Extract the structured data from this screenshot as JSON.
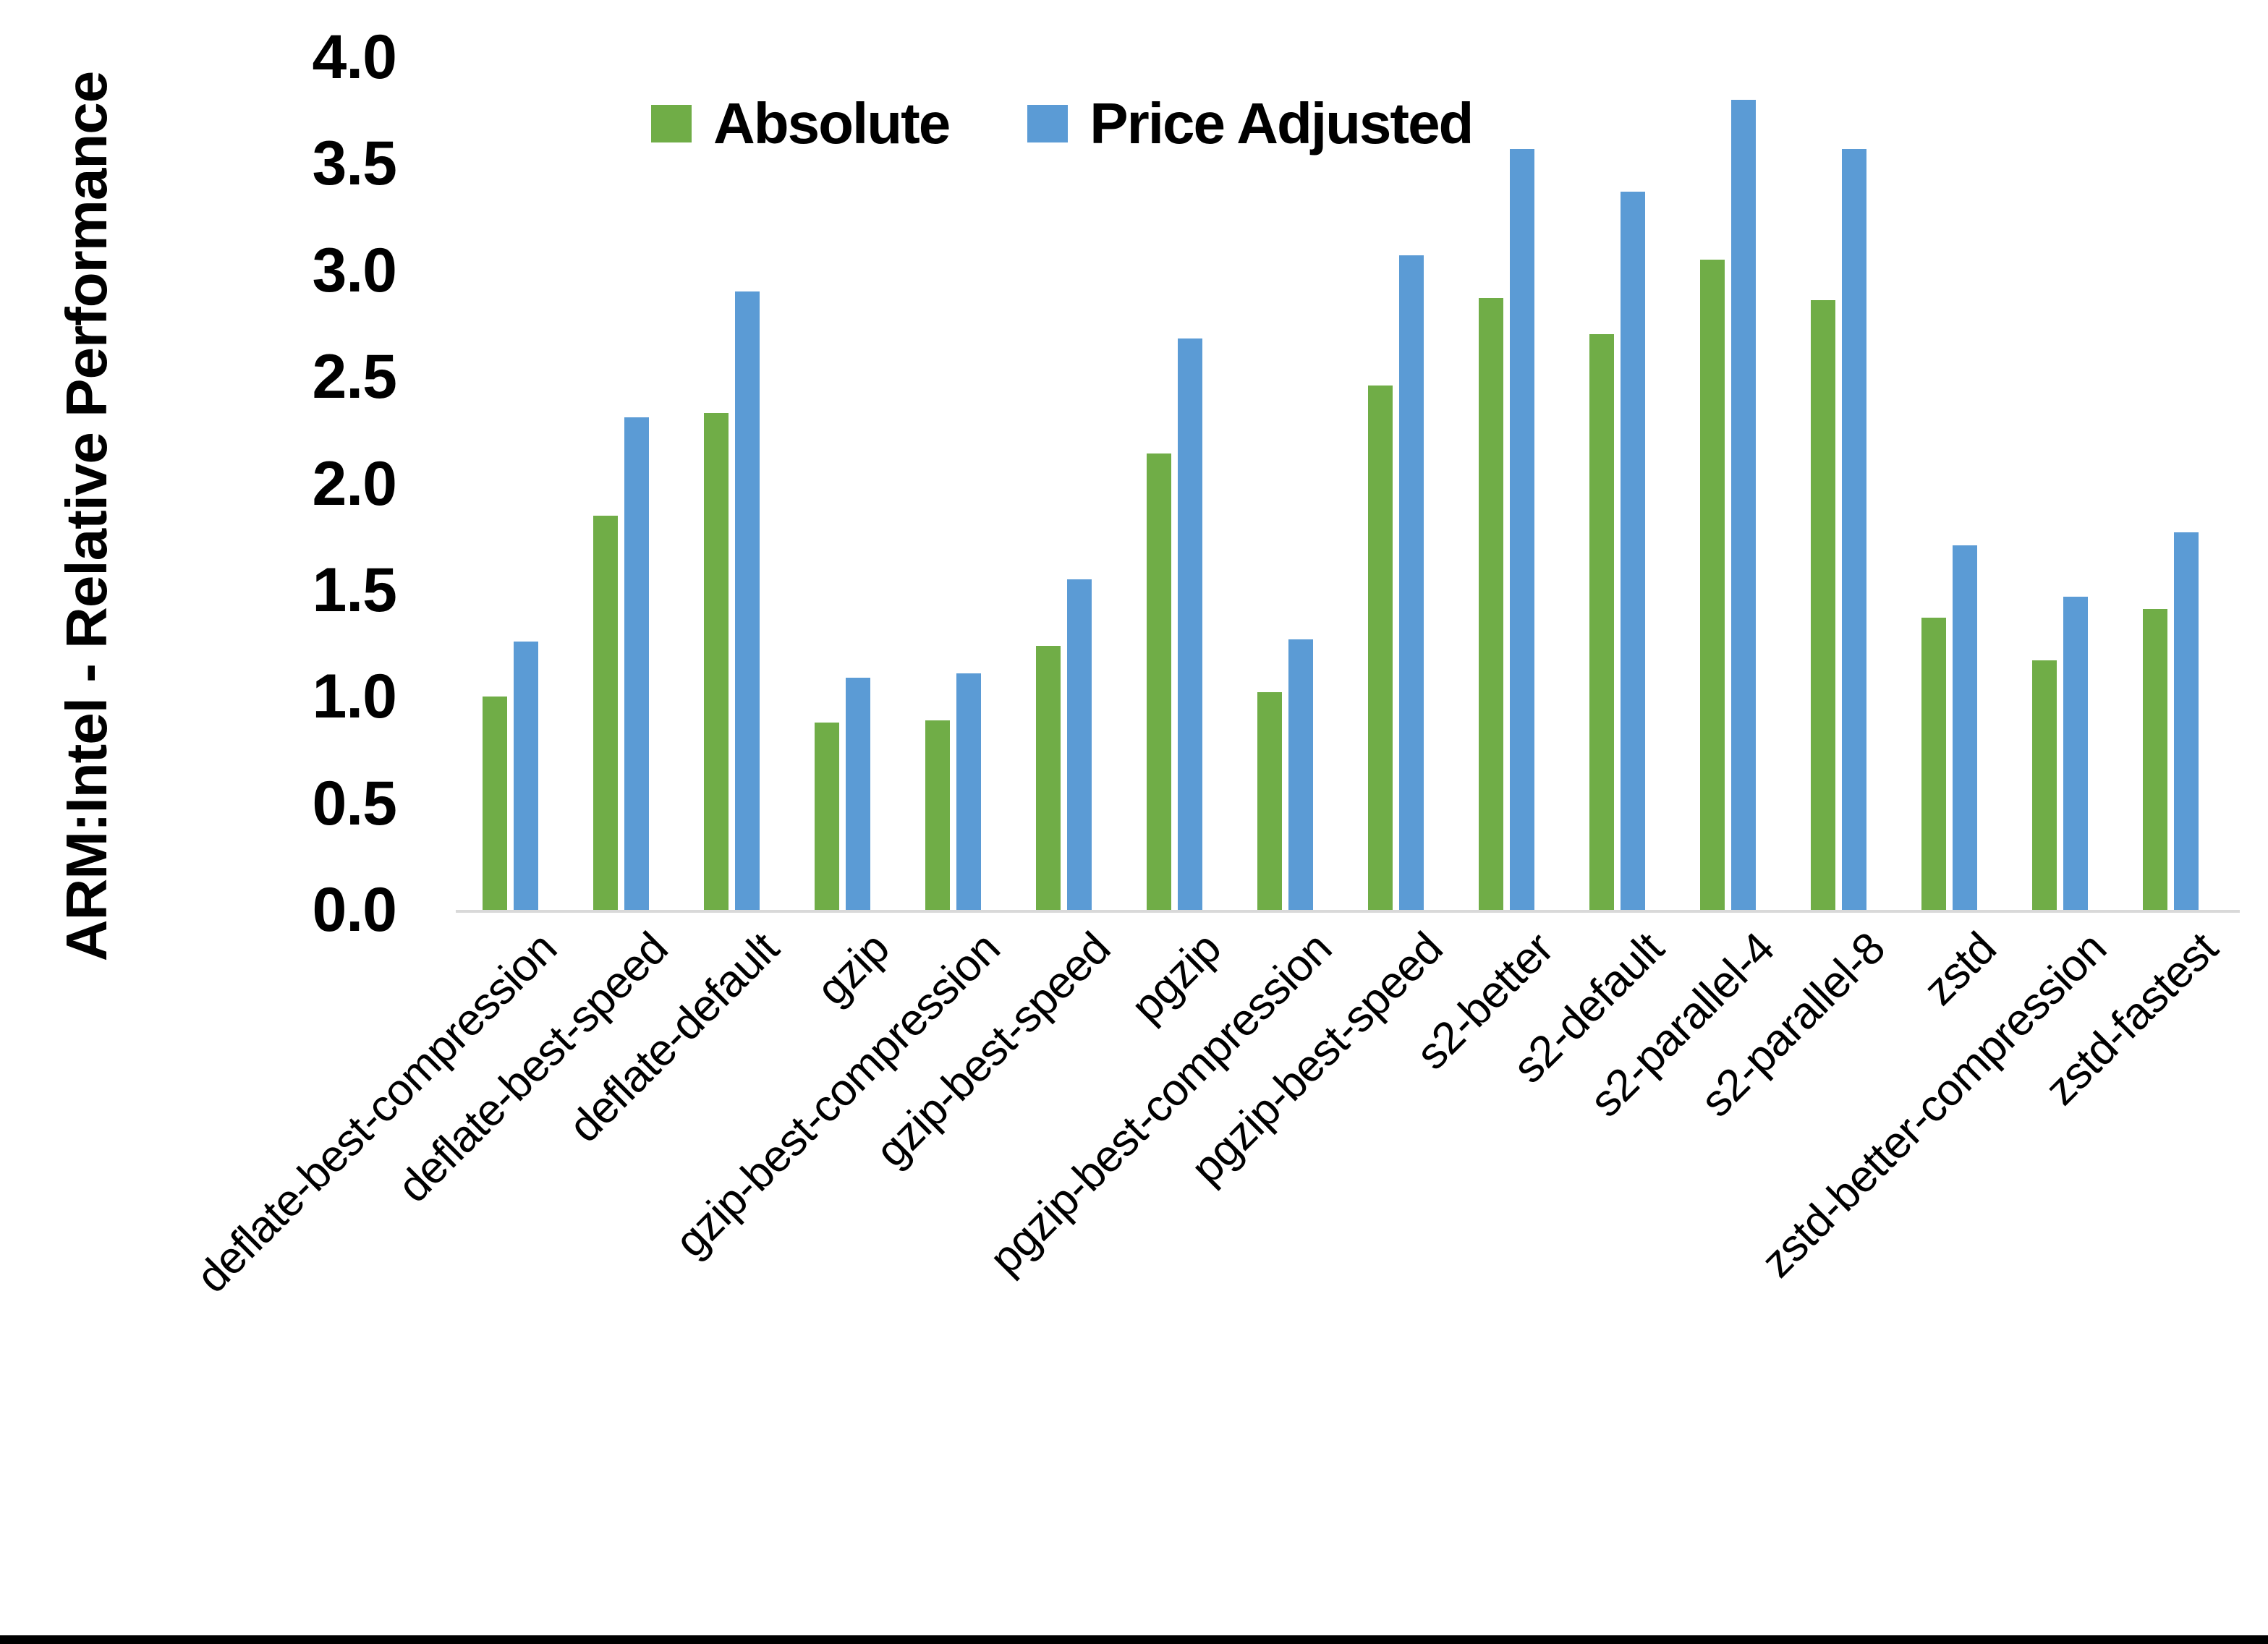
{
  "chart_data": {
    "type": "bar",
    "title": "",
    "ylabel": "ARM:Intel - Relative Performance",
    "xlabel": "",
    "ylim": [
      0.0,
      4.0
    ],
    "ytick_step": 0.5,
    "ytick_labels": [
      "4.0",
      "3.5",
      "3.0",
      "2.5",
      "2.0",
      "1.5",
      "1.0",
      "0.5",
      "0.0"
    ],
    "grid": false,
    "legend_position": "top",
    "categories": [
      "deflate-best-compression",
      "deflate-best-speed",
      "deflate-default",
      "gzip",
      "gzip-best-compression",
      "gzip-best-speed",
      "pgzip",
      "pgzip-best-compression",
      "pgzip-best-speed",
      "s2-better",
      "s2-default",
      "s2-parallel-4",
      "s2-parallel-8",
      "zstd",
      "zstd-better-compression",
      "zstd-fastest"
    ],
    "series": [
      {
        "name": "Absolute",
        "color": "#70AD47",
        "values": [
          1.0,
          1.85,
          2.33,
          0.88,
          0.89,
          1.24,
          2.14,
          1.02,
          2.46,
          2.87,
          2.7,
          3.05,
          2.86,
          1.37,
          1.17,
          1.41
        ]
      },
      {
        "name": "Price Adjusted",
        "color": "#5B9BD5",
        "values": [
          1.26,
          2.31,
          2.9,
          1.09,
          1.11,
          1.55,
          2.68,
          1.27,
          3.07,
          3.57,
          3.37,
          3.8,
          3.57,
          1.71,
          1.47,
          1.77
        ]
      }
    ]
  },
  "colors": {
    "background": "#FFFFFF",
    "axis_line": "#D9D9D9",
    "text": "#000000",
    "bottom_border": "#000000"
  }
}
